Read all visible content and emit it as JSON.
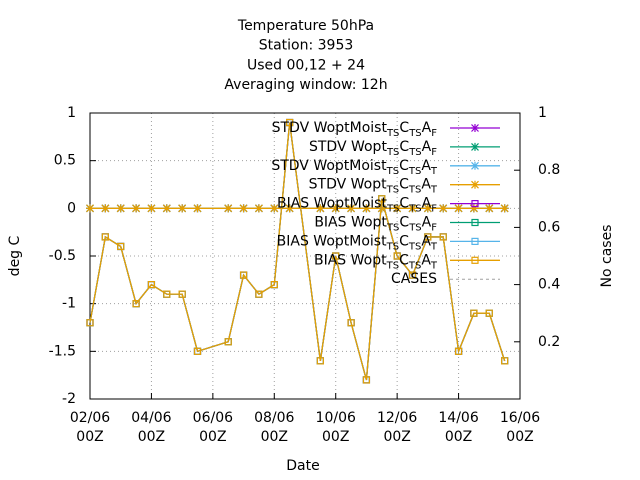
{
  "chart_data": {
    "type": "line",
    "title": [
      "Temperature 50hPa",
      "Station:      3953",
      "Used  00,12  + 24",
      "Averaging window: 12h"
    ],
    "xlabel": "Date",
    "ylabel": "deg C",
    "y2label": "No cases",
    "x": [
      2,
      2.5,
      3,
      3.5,
      4,
      4.5,
      5,
      5.5,
      6.5,
      7,
      7.5,
      8,
      8.5,
      9.5,
      10,
      10.5,
      11,
      11.5,
      12,
      12.5,
      13,
      13.5,
      14,
      14.5,
      15,
      15.5
    ],
    "xlim": [
      2,
      16
    ],
    "xticks": [
      {
        "value": 2,
        "label": [
          "02/06",
          "00Z"
        ]
      },
      {
        "value": 4,
        "label": [
          "04/06",
          "00Z"
        ]
      },
      {
        "value": 6,
        "label": [
          "06/06",
          "00Z"
        ]
      },
      {
        "value": 8,
        "label": [
          "08/06",
          "00Z"
        ]
      },
      {
        "value": 10,
        "label": [
          "10/06",
          "00Z"
        ]
      },
      {
        "value": 12,
        "label": [
          "12/06",
          "00Z"
        ]
      },
      {
        "value": 14,
        "label": [
          "14/06",
          "00Z"
        ]
      },
      {
        "value": 16,
        "label": [
          "16/06",
          "00Z"
        ]
      }
    ],
    "ylim": [
      -2,
      1
    ],
    "yticks": [
      -2,
      -1.5,
      -1,
      -0.5,
      0,
      0.5,
      1
    ],
    "y2lim": [
      0,
      1
    ],
    "y2ticks": [
      0.2,
      0.4,
      0.6,
      0.8,
      1
    ],
    "grid": true,
    "legend": "top-right",
    "series": [
      {
        "name": "STDV WoptMoist_{TS}C_{TS}A_{F}",
        "color": "#9400d3",
        "marker": "star",
        "values": [
          0,
          0,
          0,
          0,
          0,
          0,
          0,
          0,
          0,
          0,
          0,
          0,
          0,
          0,
          0,
          0,
          0,
          0,
          0,
          0,
          0,
          0,
          0,
          0,
          0,
          0
        ]
      },
      {
        "name": "STDV Wopt_{TS}C_{TS}A_{F}",
        "color": "#009e73",
        "marker": "star",
        "values": [
          0,
          0,
          0,
          0,
          0,
          0,
          0,
          0,
          0,
          0,
          0,
          0,
          0,
          0,
          0,
          0,
          0,
          0,
          0,
          0,
          0,
          0,
          0,
          0,
          0,
          0
        ]
      },
      {
        "name": "STDV WoptMoist_{TS}C_{TS}A_{T}",
        "color": "#56b4e9",
        "marker": "star",
        "values": [
          0,
          0,
          0,
          0,
          0,
          0,
          0,
          0,
          0,
          0,
          0,
          0,
          0,
          0,
          0,
          0,
          0,
          0,
          0,
          0,
          0,
          0,
          0,
          0,
          0,
          0
        ]
      },
      {
        "name": "STDV Wopt_{TS}C_{TS}A_{T}",
        "color": "#e69f00",
        "marker": "star",
        "values": [
          0,
          0,
          0,
          0,
          0,
          0,
          0,
          0,
          0,
          0,
          0,
          0,
          0,
          0,
          0,
          0,
          0,
          0,
          0,
          0,
          0,
          0,
          0,
          0,
          0,
          0
        ]
      },
      {
        "name": "BIAS WoptMoist_{TS}C_{TS}A_{F}",
        "color": "#9400d3",
        "marker": "square",
        "values": [
          -1.2,
          -0.3,
          -0.4,
          -1.0,
          -0.8,
          -0.9,
          -0.9,
          -1.5,
          -1.4,
          -0.7,
          -0.9,
          -0.8,
          0.9,
          -1.6,
          -0.5,
          -1.2,
          -1.8,
          0.1,
          -0.5,
          -0.7,
          -0.3,
          -0.3,
          -1.5,
          -1.1,
          -1.1,
          -1.6
        ]
      },
      {
        "name": "BIAS Wopt_{TS}C_{TS}A_{F}",
        "color": "#009e73",
        "marker": "square",
        "values": [
          -1.2,
          -0.3,
          -0.4,
          -1.0,
          -0.8,
          -0.9,
          -0.9,
          -1.5,
          -1.4,
          -0.7,
          -0.9,
          -0.8,
          0.9,
          -1.6,
          -0.5,
          -1.2,
          -1.8,
          0.1,
          -0.5,
          -0.7,
          -0.3,
          -0.3,
          -1.5,
          -1.1,
          -1.1,
          -1.6
        ]
      },
      {
        "name": "BIAS WoptMoist_{TS}C_{TS}A_{T}",
        "color": "#56b4e9",
        "marker": "square",
        "values": [
          -1.2,
          -0.3,
          -0.4,
          -1.0,
          -0.8,
          -0.9,
          -0.9,
          -1.5,
          -1.4,
          -0.7,
          -0.9,
          -0.8,
          0.9,
          -1.6,
          -0.5,
          -1.2,
          -1.8,
          0.1,
          -0.5,
          -0.7,
          -0.3,
          -0.3,
          -1.5,
          -1.1,
          -1.1,
          -1.6
        ]
      },
      {
        "name": "BIAS Wopt_{TS}C_{TS}A_{T}",
        "color": "#e69f00",
        "marker": "square",
        "values": [
          -1.2,
          -0.3,
          -0.4,
          -1.0,
          -0.8,
          -0.9,
          -0.9,
          -1.5,
          -1.4,
          -0.7,
          -0.9,
          -0.8,
          0.9,
          -1.6,
          -0.5,
          -1.2,
          -1.8,
          0.1,
          -0.5,
          -0.7,
          -0.3,
          -0.3,
          -1.5,
          -1.1,
          -1.1,
          -1.6
        ]
      },
      {
        "name": "CASES",
        "color": "#a0a0a0",
        "marker": "none",
        "axis": "y2",
        "dashed": true,
        "values": [
          null,
          null,
          null,
          null,
          null,
          null,
          null,
          null,
          null,
          null,
          null,
          null,
          null,
          null,
          null,
          null,
          null,
          null,
          null,
          null,
          null,
          null,
          null,
          null,
          null,
          null
        ]
      }
    ]
  }
}
